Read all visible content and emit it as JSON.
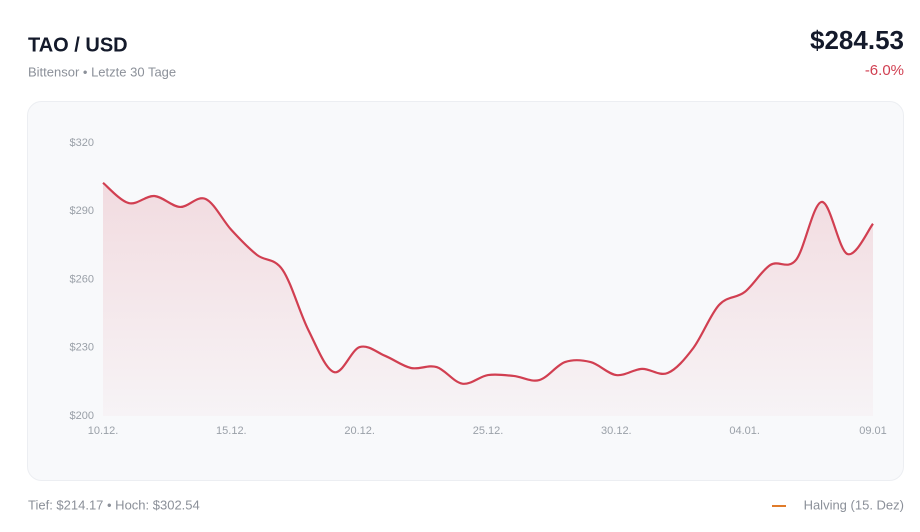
{
  "header": {
    "title": "TAO / USD",
    "subtitle": "Bittensor • Letzte 30 Tage",
    "price": "$284.53",
    "change": "-6.0%"
  },
  "chart_data": {
    "type": "line",
    "categories": [
      "10.12.",
      null,
      null,
      null,
      null,
      "15.12.",
      null,
      null,
      null,
      null,
      "20.12.",
      null,
      null,
      null,
      null,
      "25.12.",
      null,
      null,
      null,
      null,
      "30.12.",
      null,
      null,
      null,
      null,
      "04.01.",
      null,
      null,
      null,
      null,
      "09.01"
    ],
    "series": [
      {
        "color": "#d13f51",
        "values": [
          302.5,
          293.6,
          296.7,
          291.9,
          295.4,
          281.8,
          270.8,
          264.2,
          237.8,
          219.3,
          230.3,
          226.4,
          221.1,
          221.5,
          214.2,
          218.0,
          217.6,
          215.8,
          223.7,
          223.7,
          218.0,
          220.7,
          218.9,
          229.9,
          248.8,
          254.5,
          266.4,
          268.6,
          294.1,
          271.2,
          284.5
        ]
      }
    ],
    "ylim": [
      200,
      320
    ],
    "yticks": [
      {
        "value": 200,
        "label": "$200"
      },
      {
        "value": 230,
        "label": "$230"
      },
      {
        "value": 260,
        "label": "$260"
      },
      {
        "value": 290,
        "label": "$290"
      },
      {
        "value": 320,
        "label": "$320"
      }
    ],
    "annotations": [
      {
        "label": "Halving (15. Dez)",
        "color": "#e07b2a"
      }
    ]
  },
  "footer": {
    "stats": "Tief: $214.17 • Hoch: $302.54"
  }
}
